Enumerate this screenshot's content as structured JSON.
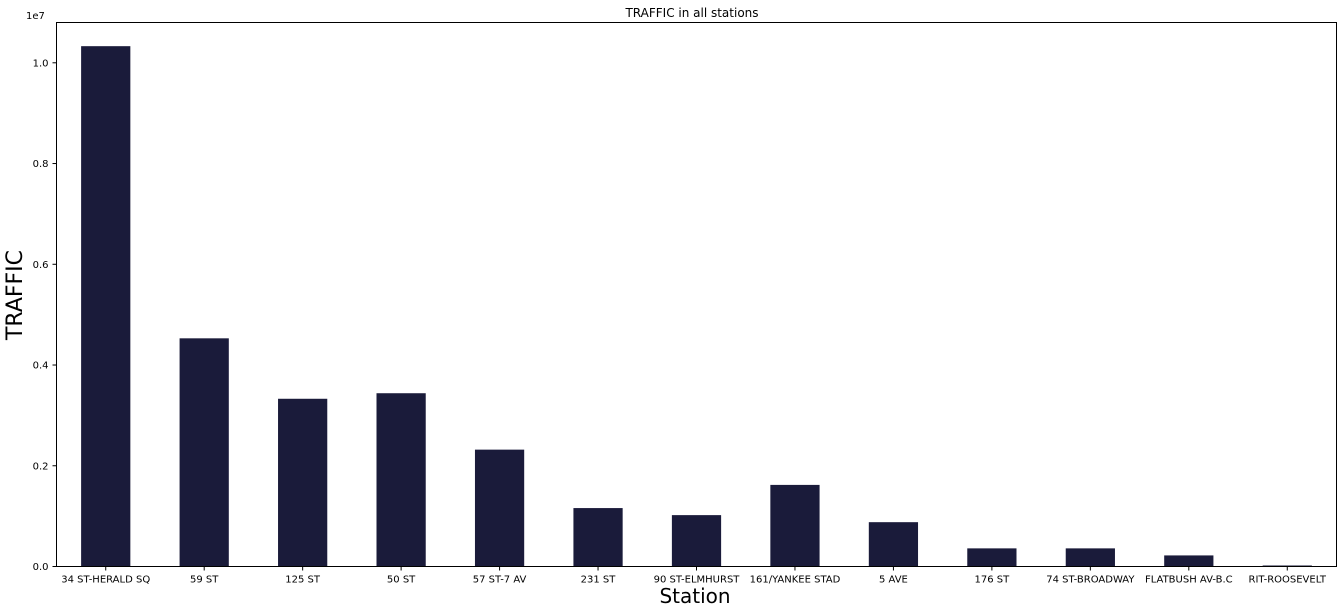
{
  "chart_data": {
    "type": "bar",
    "title": "TRAFFIC in all stations",
    "xlabel": "Station",
    "ylabel": "TRAFFIC",
    "y_offset_label": "1e7",
    "y_scale": 10000000,
    "ylim": [
      0,
      10800000
    ],
    "yticks": [
      0,
      2000000,
      4000000,
      6000000,
      8000000,
      10000000
    ],
    "ytick_labels": [
      "0.0",
      "0.2",
      "0.4",
      "0.6",
      "0.8",
      "1.0"
    ],
    "grid": false,
    "categories": [
      "34 ST-HERALD SQ",
      "59 ST",
      "125 ST",
      "50 ST",
      "57 ST-7 AV",
      "231 ST",
      "90 ST-ELMHURST",
      "161/YANKEE STAD",
      "5 AVE",
      "176 ST",
      "74 ST-BROADWAY",
      "FLATBUSH AV-B.C",
      "RIT-ROOSEVELT"
    ],
    "values": [
      10330000,
      4530000,
      3330000,
      3440000,
      2320000,
      1160000,
      1020000,
      1620000,
      880000,
      360000,
      360000,
      220000,
      20000
    ],
    "bar_color": "#1a1b3a"
  }
}
